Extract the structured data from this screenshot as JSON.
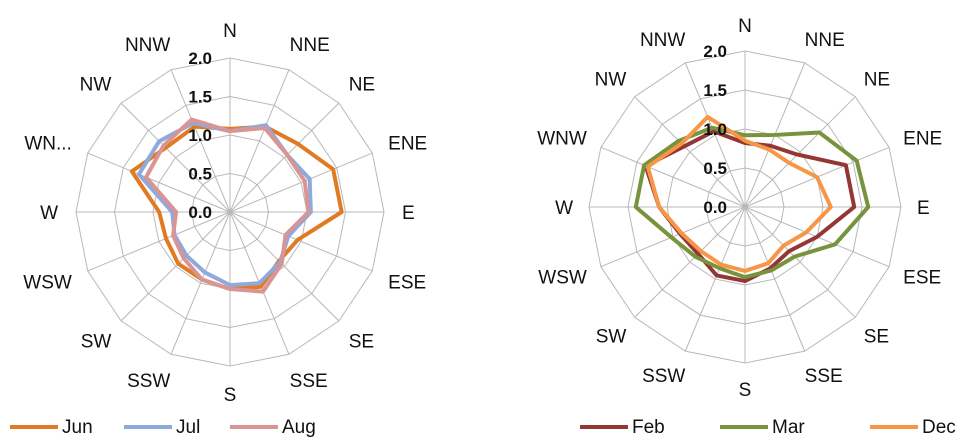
{
  "chart_data": [
    {
      "type": "radar",
      "title": "",
      "categories": [
        "N",
        "NNE",
        "NE",
        "ENE",
        "E",
        "ESE",
        "SE",
        "SSE",
        "S",
        "SSW",
        "SW",
        "WSW",
        "W",
        "WN...",
        "NW",
        "NNW"
      ],
      "rlim": [
        0,
        2.0
      ],
      "rticks": [
        "0.0",
        "0.5",
        "1.0",
        "1.5",
        "2.0"
      ],
      "grid": true,
      "legend": "bottom",
      "series": [
        {
          "name": "Jun",
          "color": "#E07B24",
          "values": [
            1.08,
            1.2,
            1.25,
            1.45,
            1.45,
            0.95,
            0.9,
            1.05,
            1.0,
            0.95,
            0.95,
            0.9,
            0.92,
            1.38,
            1.18,
            1.2
          ]
        },
        {
          "name": "Jul",
          "color": "#8EA9DB",
          "values": [
            1.05,
            1.22,
            1.05,
            1.12,
            1.05,
            0.82,
            0.92,
            1.0,
            0.95,
            0.85,
            0.8,
            0.78,
            0.75,
            1.28,
            1.3,
            1.25
          ]
        },
        {
          "name": "Aug",
          "color": "#D99594",
          "values": [
            1.05,
            1.18,
            1.05,
            1.05,
            1.02,
            0.78,
            0.95,
            1.12,
            1.0,
            0.95,
            0.85,
            0.8,
            0.7,
            1.18,
            1.22,
            1.3
          ]
        }
      ]
    },
    {
      "type": "radar",
      "title": "",
      "categories": [
        "N",
        "NNE",
        "NE",
        "ENE",
        "E",
        "ESE",
        "SE",
        "SSE",
        "S",
        "SSW",
        "SW",
        "WSW",
        "W",
        "WNW",
        "NW",
        "NNW"
      ],
      "rlim": [
        0,
        2.0
      ],
      "rticks": [
        "0.0",
        "0.5",
        "1.0",
        "1.5",
        "2.0"
      ],
      "grid": true,
      "legend": "bottom",
      "series": [
        {
          "name": "Feb",
          "color": "#943634",
          "values": [
            0.82,
            0.85,
            0.95,
            1.4,
            1.4,
            1.0,
            0.8,
            0.85,
            0.95,
            0.95,
            0.85,
            0.9,
            1.1,
            1.38,
            1.1,
            1.05
          ]
        },
        {
          "name": "Mar",
          "color": "#77933C",
          "values": [
            0.92,
            1.0,
            1.35,
            1.55,
            1.58,
            1.25,
            0.9,
            0.88,
            0.9,
            0.85,
            0.9,
            1.02,
            1.4,
            1.4,
            1.2,
            1.1
          ]
        },
        {
          "name": "Dec",
          "color": "#F79646",
          "values": [
            0.85,
            0.8,
            0.8,
            1.0,
            1.1,
            0.85,
            0.7,
            0.78,
            0.82,
            0.8,
            0.8,
            0.88,
            1.1,
            1.35,
            1.15,
            1.25
          ]
        }
      ]
    }
  ]
}
